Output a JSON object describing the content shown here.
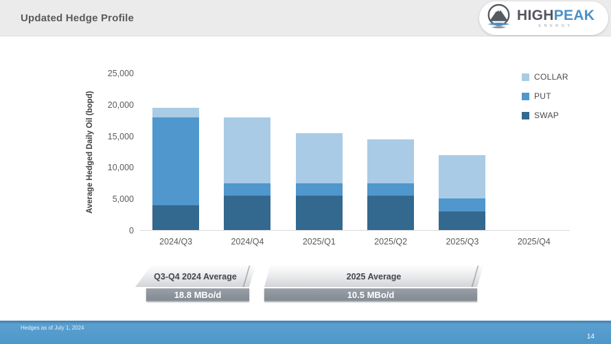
{
  "header": {
    "title": "Updated Hedge Profile",
    "logo": {
      "part1": "HIGH",
      "part2": "PEAK",
      "subtitle": "ENERGY"
    }
  },
  "chart_data": {
    "type": "bar",
    "stacked": true,
    "title": "",
    "xlabel": "",
    "ylabel": "Average Hedged Daily Oil (bopd)",
    "categories": [
      "2024/Q3",
      "2024/Q4",
      "2025/Q1",
      "2025/Q2",
      "2025/Q3",
      "2025/Q4"
    ],
    "series": [
      {
        "name": "SWAP",
        "color": "#33688f",
        "values": [
          4000,
          5500,
          5500,
          5500,
          3000,
          0
        ]
      },
      {
        "name": "PUT",
        "color": "#4f97cc",
        "values": [
          14000,
          2000,
          2000,
          2000,
          2000,
          0
        ]
      },
      {
        "name": "COLLAR",
        "color": "#a9cbe5",
        "values": [
          1500,
          10500,
          8000,
          7000,
          7000,
          0
        ]
      }
    ],
    "totals": [
      19500,
      18000,
      15500,
      14500,
      12000,
      0
    ],
    "ylim": [
      0,
      25000
    ],
    "ytick_interval": 5000,
    "ytick_labels": [
      "0",
      "5,000",
      "10,000",
      "15,000",
      "20,000",
      "25,000"
    ],
    "grid": false,
    "legend_position": "right",
    "legend_order": [
      "COLLAR",
      "PUT",
      "SWAP"
    ]
  },
  "callouts": [
    {
      "label": "Q3-Q4 2024 Average",
      "value": "18.8 MBo/d"
    },
    {
      "label": "2025 Average",
      "value": "10.5 MBo/d"
    }
  ],
  "footer": {
    "note": "Hedges as of July 1, 2024",
    "page_number": "14"
  },
  "colors": {
    "collar": "#a9cbe5",
    "put": "#4f97cc",
    "swap": "#33688f",
    "footer_blue": "#4f97c9",
    "header_gray": "#ebebeb",
    "banner_bar_gray": "#8a9199",
    "logo_blue": "#4a90c7"
  }
}
